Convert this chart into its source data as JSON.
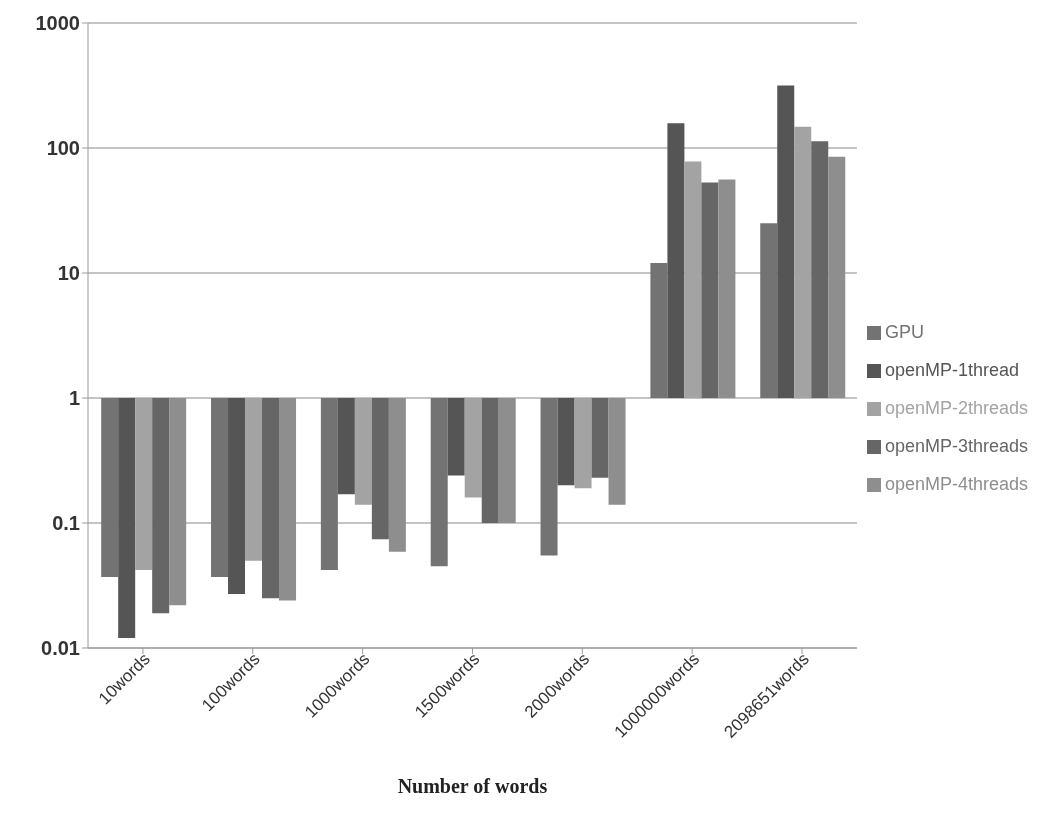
{
  "chart_data": {
    "type": "bar",
    "xlabel": "Number of words",
    "categories": [
      "10words",
      "100words",
      "1000words",
      "1500words",
      "2000words",
      "1000000words",
      "2098651words"
    ],
    "series": [
      {
        "name": "GPU",
        "color": "#737373",
        "base": [
          1,
          1,
          1,
          1,
          1,
          1,
          1
        ],
        "values": [
          -0.963,
          -0.963,
          -0.958,
          -0.955,
          -0.945,
          11,
          24
        ]
      },
      {
        "name": "openMP-1thread",
        "color": "#555555",
        "base": [
          1,
          1,
          1,
          1,
          1,
          1,
          1
        ],
        "values": [
          -0.988,
          -0.973,
          -0.83,
          -0.76,
          -0.8,
          157,
          315
        ]
      },
      {
        "name": "openMP-2threads",
        "color": "#a3a3a3",
        "base": [
          1,
          1,
          1,
          1,
          1,
          1,
          1
        ],
        "values": [
          -0.958,
          -0.95,
          -0.86,
          -0.84,
          -0.81,
          77,
          147
        ]
      },
      {
        "name": "openMP-3threads",
        "color": "#666666",
        "base": [
          1,
          1,
          1,
          1,
          1,
          1,
          1
        ],
        "values": [
          -0.981,
          -0.975,
          -0.926,
          -0.9,
          -0.77,
          52,
          112
        ]
      },
      {
        "name": "openMP-4threads",
        "color": "#8e8e8e",
        "base": [
          1,
          1,
          1,
          1,
          1,
          1,
          1
        ],
        "values": [
          -0.978,
          -0.976,
          -0.941,
          -0.9,
          -0.86,
          55,
          84
        ]
      }
    ],
    "log": true,
    "ylim": [
      0.01,
      1000
    ],
    "yticks": [
      0.01,
      0.1,
      1,
      10,
      100,
      1000
    ],
    "grid": "y",
    "legend": "right"
  }
}
